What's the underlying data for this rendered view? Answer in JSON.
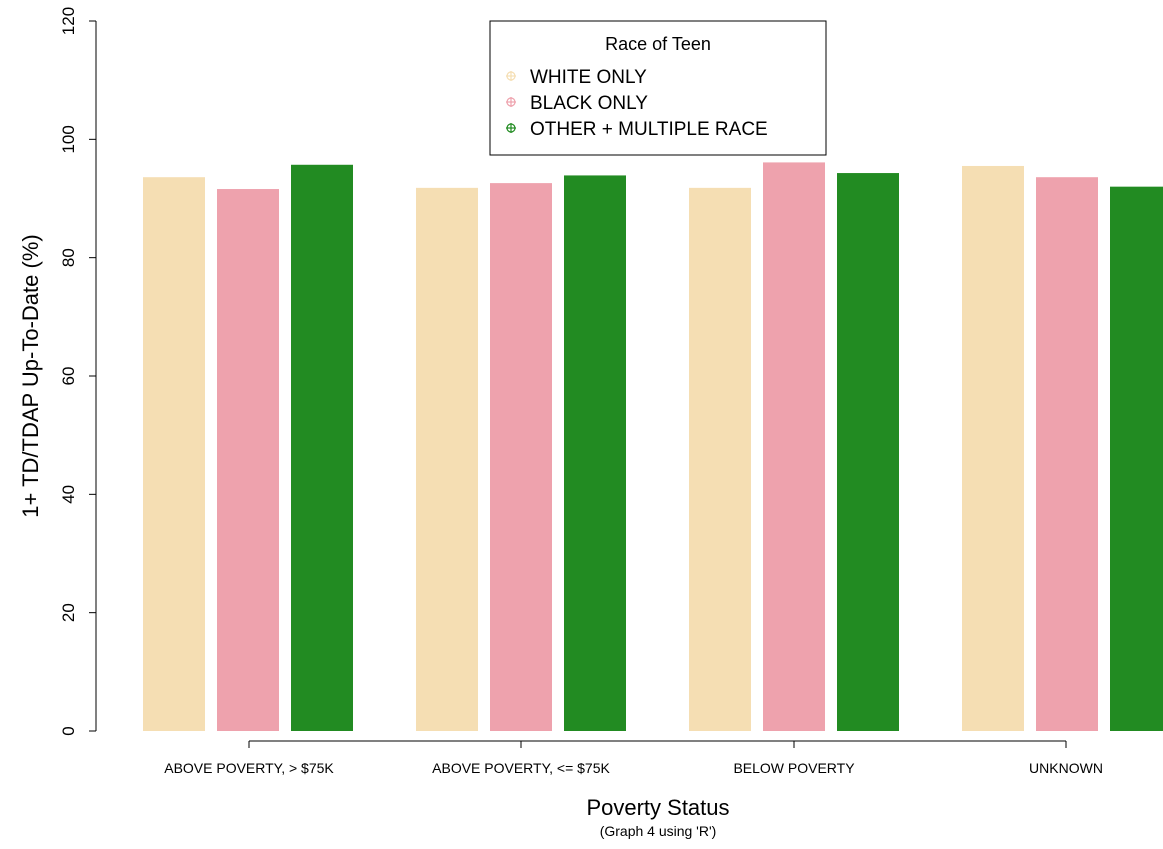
{
  "chart_data": {
    "type": "bar",
    "title": "",
    "xlabel": "Poverty Status",
    "xlabel_sub": "(Graph 4 using 'R')",
    "ylabel": "1+ TD/TDAP Up-To-Date (%)",
    "ylim": [
      0,
      120
    ],
    "yticks": [
      "0",
      "20",
      "40",
      "60",
      "80",
      "100",
      "120"
    ],
    "categories": [
      "ABOVE POVERTY, > $75K",
      "ABOVE POVERTY, <= $75K",
      "BELOW POVERTY",
      "UNKNOWN"
    ],
    "legend": {
      "title": "Race of Teen",
      "position": "top-center"
    },
    "series": [
      {
        "name": "WHITE ONLY",
        "color": "#f5deb3",
        "values": [
          93.6,
          91.8,
          91.8,
          95.5
        ]
      },
      {
        "name": "BLACK ONLY",
        "color": "#eea2ad",
        "values": [
          91.6,
          92.6,
          96.1,
          93.6
        ]
      },
      {
        "name": "OTHER + MULTIPLE RACE",
        "color": "#228b22",
        "values": [
          95.7,
          93.9,
          94.3,
          92.0
        ]
      }
    ],
    "grid": false
  }
}
